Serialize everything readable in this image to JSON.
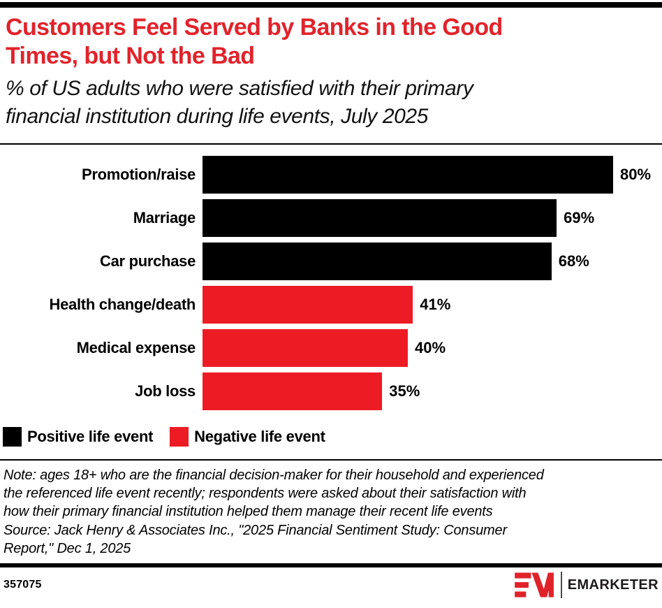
{
  "header": {
    "title_lines": [
      "Customers Feel Served by Banks in the Good",
      "Times, but Not the Bad"
    ],
    "subtitle_lines": [
      "% of US adults who were satisfied with their primary",
      "financial institution during life events, July 2025"
    ],
    "title_color": "#E1232B"
  },
  "chart_data": {
    "type": "bar",
    "orientation": "horizontal",
    "title": "Customers Feel Served by Banks in the Good Times, but Not the Bad",
    "subtitle": "% of US adults who were satisfied with their primary financial institution during life events, July 2025",
    "categories": [
      "Promotion/raise",
      "Marriage",
      "Car purchase",
      "Health change/death",
      "Medical expense",
      "Job loss"
    ],
    "values": [
      80,
      69,
      68,
      41,
      40,
      35
    ],
    "value_labels": [
      "80%",
      "69%",
      "68%",
      "41%",
      "40%",
      "35%"
    ],
    "category_colors": [
      "#000000",
      "#000000",
      "#000000",
      "#ED1C24",
      "#ED1C24",
      "#ED1C24"
    ],
    "series": [
      {
        "name": "Positive life event",
        "color": "#000000",
        "categories": [
          "Promotion/raise",
          "Marriage",
          "Car purchase"
        ],
        "values": [
          80,
          69,
          68
        ]
      },
      {
        "name": "Negative life event",
        "color": "#ED1C24",
        "categories": [
          "Health change/death",
          "Medical expense",
          "Job loss"
        ],
        "values": [
          41,
          40,
          35
        ]
      }
    ],
    "xlim": [
      0,
      100
    ],
    "grid": false,
    "data_labels": true,
    "legend_position": "bottom"
  },
  "legend": {
    "items": [
      {
        "label": "Positive life event",
        "color": "#000000"
      },
      {
        "label": "Negative life event",
        "color": "#ED1C24"
      }
    ]
  },
  "footnote": {
    "note_lines": [
      "Note: ages 18+ who are the financial decision-maker for their household and experienced",
      "the referenced life event recently; respondents were asked about their satisfaction with",
      "how their primary financial institution helped them manage their recent life events"
    ],
    "source_lines": [
      "Source: Jack Henry & Associates Inc., \"2025 Financial Sentiment Study: Consumer",
      "Report,\" Dec 1, 2025"
    ]
  },
  "footer": {
    "chart_id": "357075",
    "brand": "EMARKETER",
    "brand_red": "#E0232B"
  }
}
